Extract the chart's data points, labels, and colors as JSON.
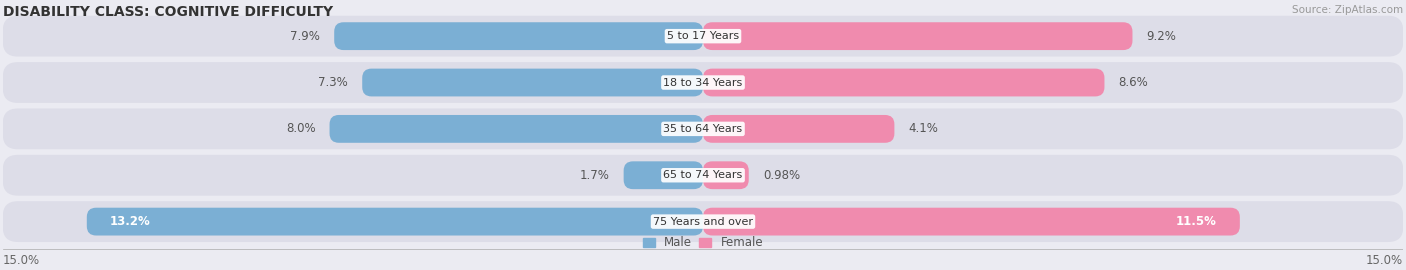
{
  "title": "DISABILITY CLASS: COGNITIVE DIFFICULTY",
  "source": "Source: ZipAtlas.com",
  "categories": [
    "5 to 17 Years",
    "18 to 34 Years",
    "35 to 64 Years",
    "65 to 74 Years",
    "75 Years and over"
  ],
  "male_values": [
    7.9,
    7.3,
    8.0,
    1.7,
    13.2
  ],
  "female_values": [
    9.2,
    8.6,
    4.1,
    0.98,
    11.5
  ],
  "male_labels": [
    "7.9%",
    "7.3%",
    "8.0%",
    "1.7%",
    "13.2%"
  ],
  "female_labels": [
    "9.2%",
    "8.6%",
    "4.1%",
    "0.98%",
    "11.5%"
  ],
  "male_color": "#7bafd4",
  "female_color": "#f08bae",
  "background_color": "#ebebf2",
  "row_bg_color": "#dddde8",
  "max_value": 15.0,
  "axis_label_left": "15.0%",
  "axis_label_right": "15.0%",
  "legend_male": "Male",
  "legend_female": "Female",
  "title_fontsize": 10,
  "label_fontsize": 8.5,
  "category_fontsize": 8,
  "axis_fontsize": 8.5,
  "source_fontsize": 7.5
}
